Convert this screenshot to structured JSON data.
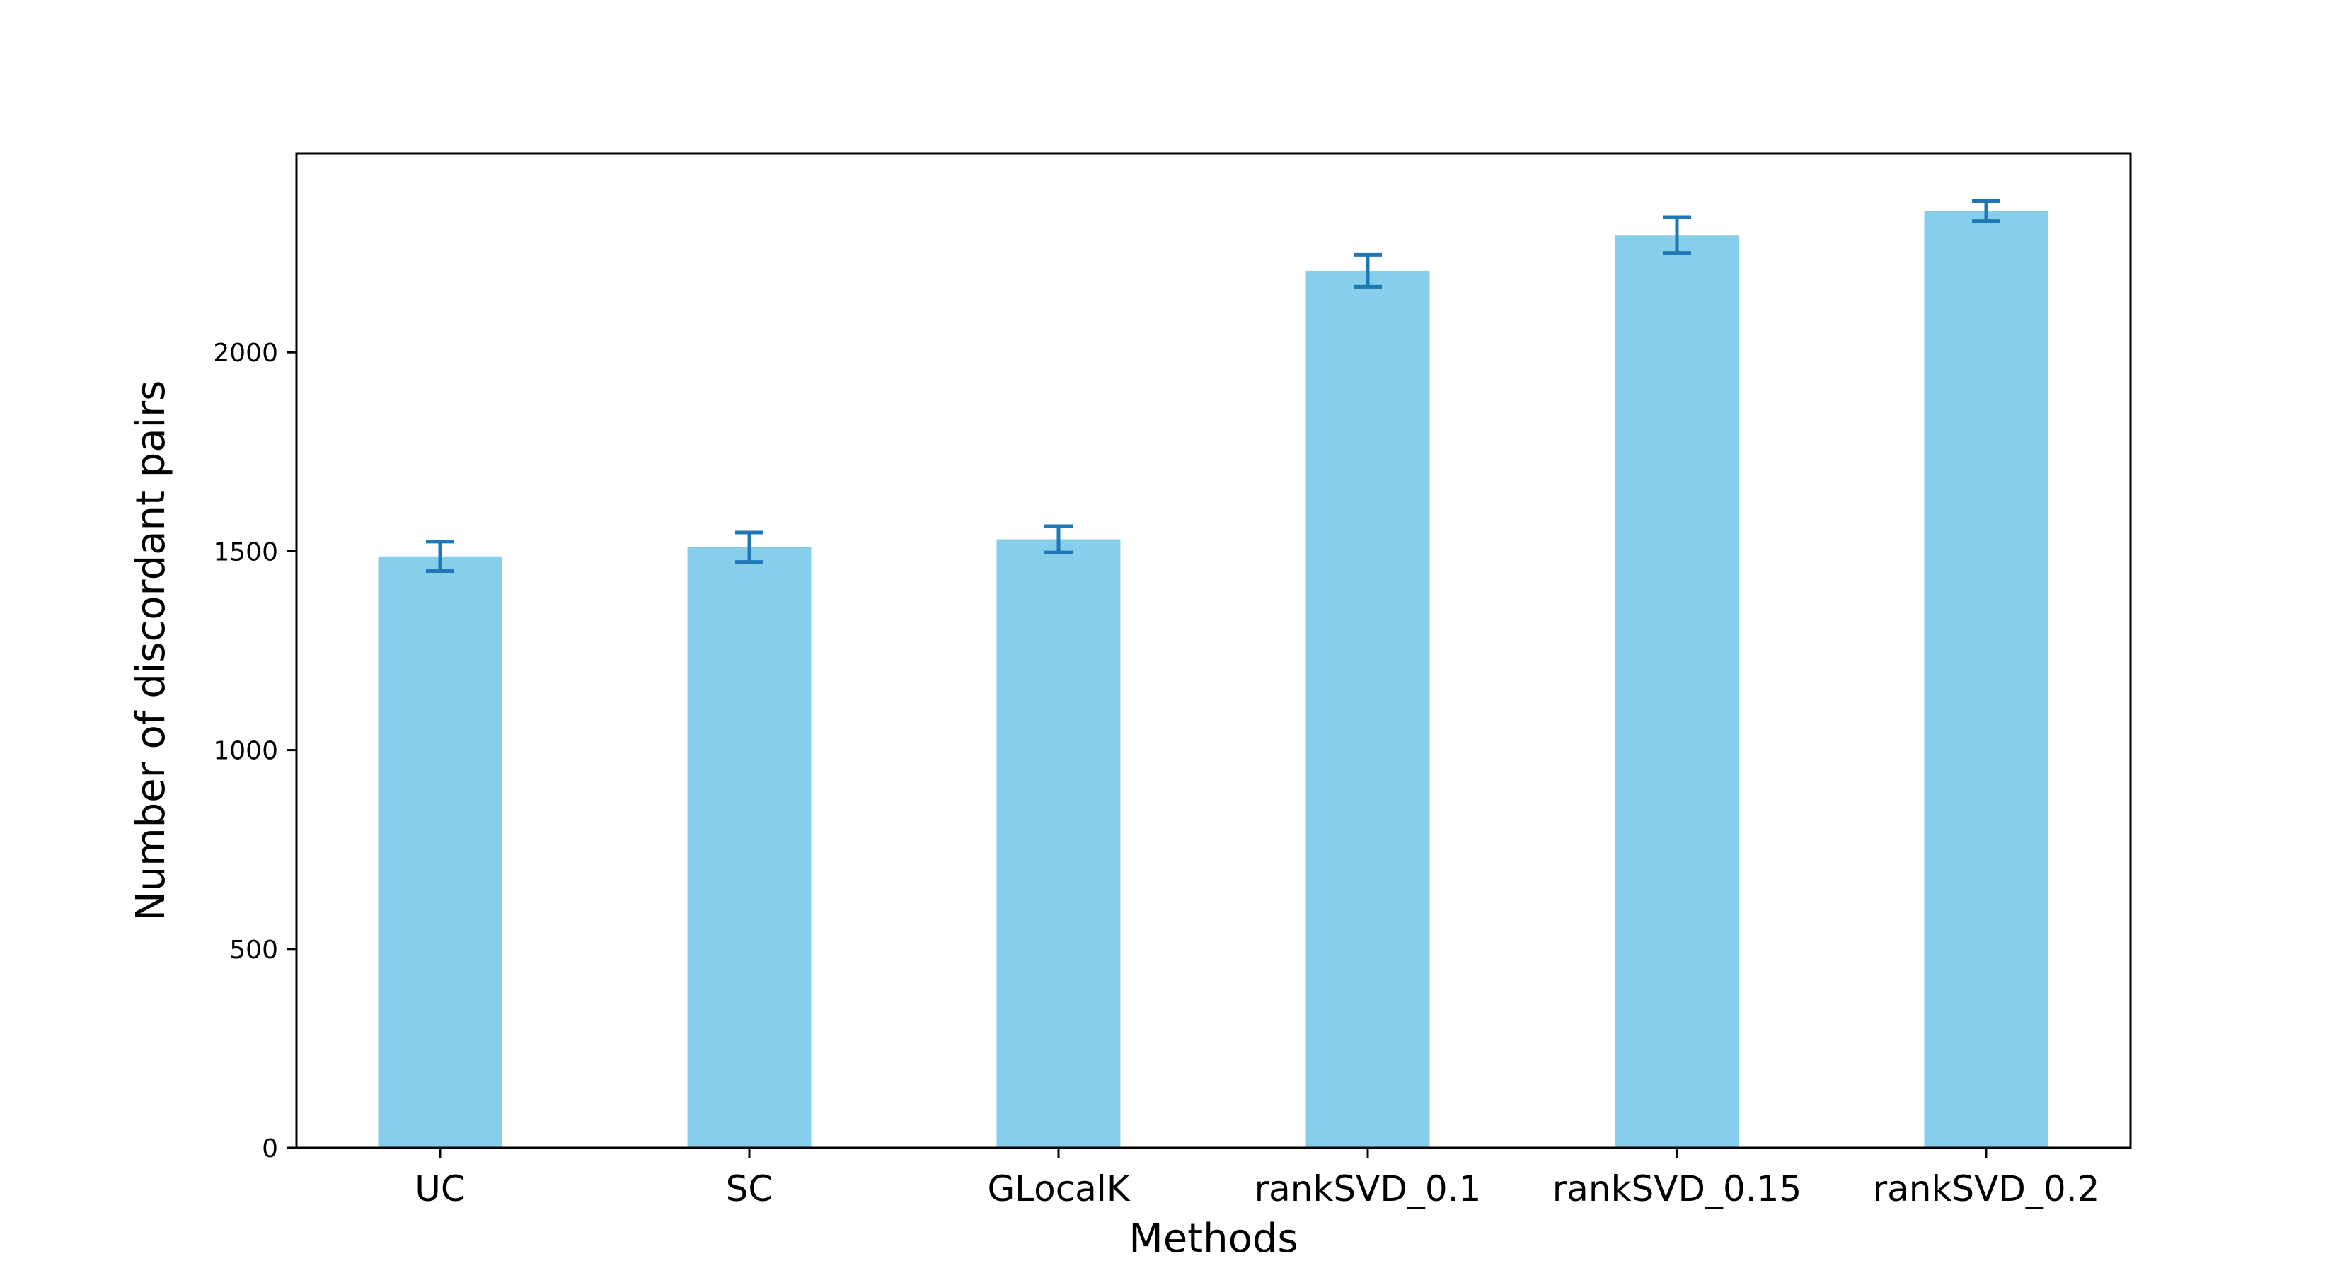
{
  "chart_data": {
    "type": "bar",
    "title": "",
    "xlabel": "Methods",
    "ylabel": "Number of discordant pairs",
    "categories": [
      "UC",
      "SC",
      "GLocalK",
      "rankSVD_0.1",
      "rankSVD_0.15",
      "rankSVD_0.2"
    ],
    "values": [
      1487,
      1510,
      1530,
      2205,
      2295,
      2355
    ],
    "errors": [
      37,
      37,
      33,
      40,
      45,
      25
    ],
    "ylim": [
      0,
      2500
    ],
    "yticks": [
      0,
      500,
      1000,
      1500,
      2000
    ],
    "grid": false,
    "colors": {
      "bar": "#87ceeb",
      "error_bar": "#1f77b4",
      "axis": "#000000"
    }
  }
}
